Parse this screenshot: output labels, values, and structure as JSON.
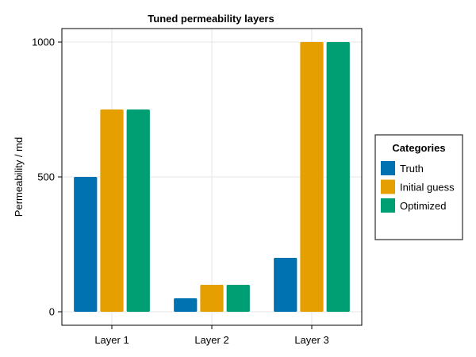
{
  "chart_data": {
    "type": "bar",
    "title": "Tuned permeability layers",
    "xlabel": "",
    "ylabel": "Permeability / md",
    "categories": [
      "Layer 1",
      "Layer 2",
      "Layer 3"
    ],
    "series": [
      {
        "name": "Truth",
        "values": [
          500,
          50,
          200
        ],
        "color": "#0072b2"
      },
      {
        "name": "Initial guess",
        "values": [
          750,
          100,
          1000
        ],
        "color": "#e69f00"
      },
      {
        "name": "Optimized",
        "values": [
          750,
          100,
          1000
        ],
        "color": "#009e73"
      }
    ],
    "ylim": [
      -50,
      1050
    ],
    "yticks": [
      0,
      500,
      1000
    ],
    "grid": true,
    "legend": {
      "title": "Categories",
      "placement": "right"
    }
  }
}
